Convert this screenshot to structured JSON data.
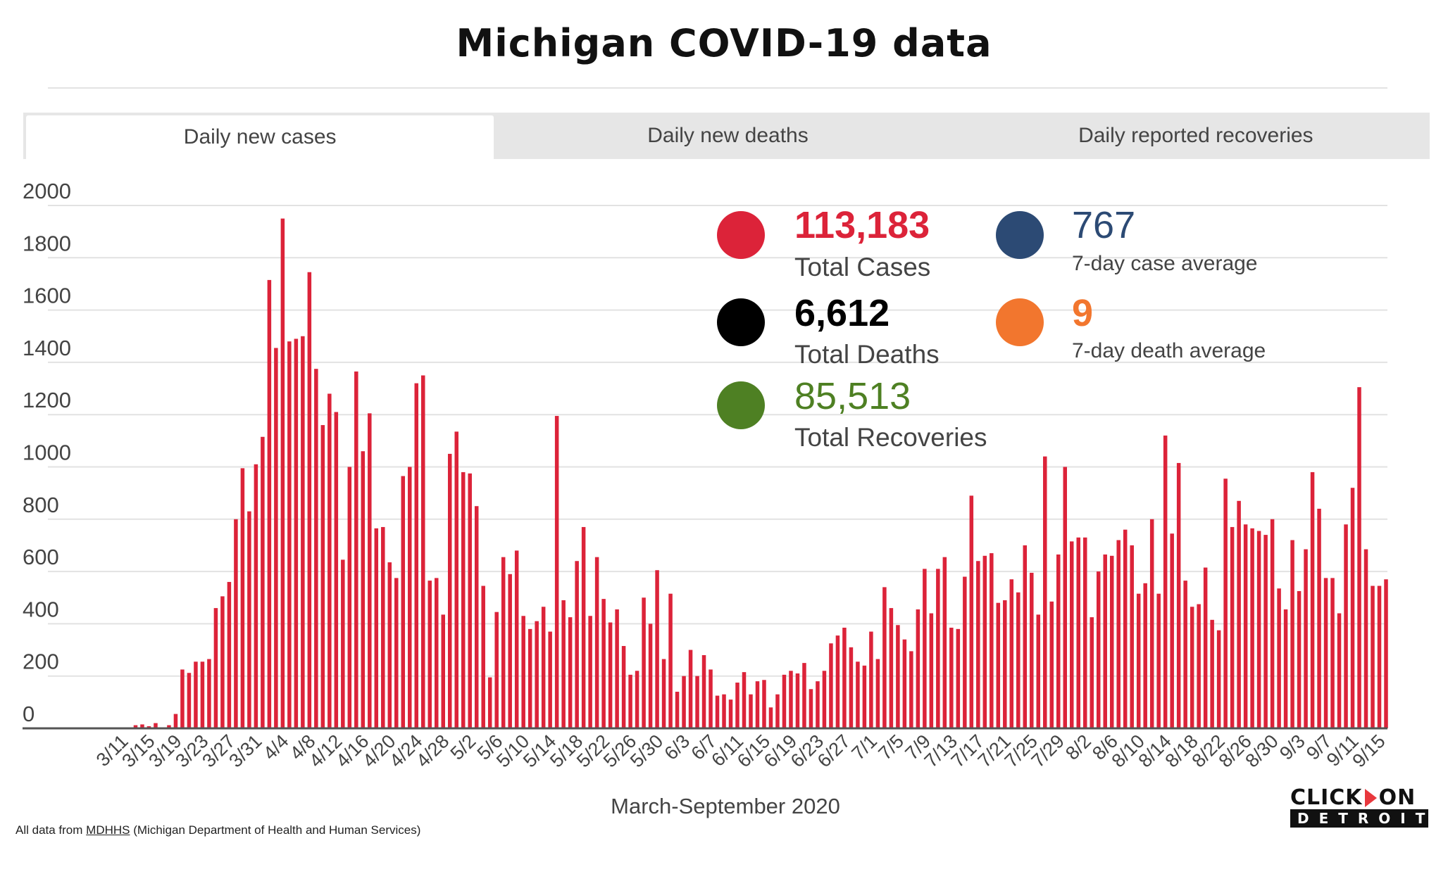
{
  "title": "Michigan COVID-19 data",
  "tabs": [
    {
      "label": "Daily new cases",
      "active": true
    },
    {
      "label": "Daily new deaths",
      "active": false
    },
    {
      "label": "Daily reported recoveries",
      "active": false
    }
  ],
  "stats": {
    "total_cases": {
      "value": "113,183",
      "label": "Total Cases",
      "color": "#dc2339"
    },
    "total_deaths": {
      "value": "6,612",
      "label": "Total Deaths",
      "color": "#000000"
    },
    "total_recoveries": {
      "value": "85,513",
      "label": "Total Recoveries",
      "color": "#4e8023"
    },
    "case_avg": {
      "value": "767",
      "label": "7-day case average",
      "color": "#2c4a74"
    },
    "death_avg": {
      "value": "9",
      "label": "7-day death average",
      "color": "#f2762e"
    }
  },
  "footer": {
    "prefix": "All data from ",
    "link": "MDHHS",
    "suffix": " (Michigan Department of Health and Human Services)"
  },
  "logo": {
    "top_left": "CLICK",
    "top_right": "ON",
    "bottom": "DETROIT"
  },
  "chart_data": {
    "type": "bar",
    "title": "Daily new cases",
    "xlabel": "March-September 2020",
    "ylabel": "",
    "ylim": [
      0,
      2000
    ],
    "yticks": [
      0,
      200,
      400,
      600,
      800,
      1000,
      1200,
      1400,
      1600,
      1800,
      2000
    ],
    "grid": true,
    "bar_color": "#dc2339",
    "start_date": "3/10",
    "xtick_labels": [
      "3/11",
      "3/15",
      "3/19",
      "3/23",
      "3/27",
      "3/31",
      "4/4",
      "4/8",
      "4/12",
      "4/16",
      "4/20",
      "4/24",
      "4/28",
      "5/2",
      "5/6",
      "5/10",
      "5/14",
      "5/18",
      "5/22",
      "5/26",
      "5/30",
      "6/3",
      "6/7",
      "6/11",
      "6/15",
      "6/19",
      "6/23",
      "6/27",
      "7/1",
      "7/5",
      "7/9",
      "7/13",
      "7/17",
      "7/21",
      "7/25",
      "7/29",
      "8/2",
      "8/6",
      "8/10",
      "8/14",
      "8/18",
      "8/22",
      "8/26",
      "8/30",
      "9/3",
      "9/7",
      "9/11",
      "9/15"
    ],
    "values": [
      2,
      0,
      0,
      12,
      15,
      8,
      20,
      0,
      12,
      55,
      225,
      212,
      255,
      255,
      265,
      460,
      505,
      560,
      800,
      995,
      830,
      1010,
      1115,
      1715,
      1455,
      1950,
      1480,
      1490,
      1500,
      1745,
      1375,
      1160,
      1280,
      1210,
      645,
      1000,
      1365,
      1060,
      1205,
      765,
      770,
      635,
      575,
      965,
      1000,
      1320,
      1350,
      565,
      575,
      435,
      1050,
      1135,
      980,
      975,
      850,
      545,
      195,
      445,
      655,
      590,
      680,
      430,
      380,
      410,
      465,
      370,
      1195,
      490,
      425,
      640,
      770,
      430,
      655,
      495,
      405,
      455,
      315,
      205,
      220,
      500,
      400,
      605,
      265,
      515,
      140,
      200,
      300,
      200,
      280,
      225,
      125,
      130,
      110,
      175,
      215,
      130,
      180,
      185,
      80,
      130,
      205,
      220,
      210,
      250,
      150,
      180,
      220,
      325,
      355,
      385,
      310,
      255,
      240,
      370,
      265,
      540,
      460,
      395,
      340,
      295,
      455,
      610,
      440,
      610,
      655,
      385,
      380,
      580,
      890,
      640,
      660,
      670,
      480,
      490,
      570,
      520,
      700,
      595,
      435,
      1040,
      485,
      665,
      1000,
      715,
      730,
      730,
      425,
      600,
      665,
      660,
      720,
      760,
      700,
      515,
      555,
      800,
      515,
      1120,
      745,
      1015,
      565,
      465,
      475,
      615,
      415,
      375,
      955,
      770,
      870,
      780,
      765,
      755,
      740,
      800,
      535,
      455,
      720,
      525,
      685,
      980,
      840,
      575,
      575,
      440,
      780,
      920,
      1305,
      685,
      545,
      545,
      570
    ]
  }
}
